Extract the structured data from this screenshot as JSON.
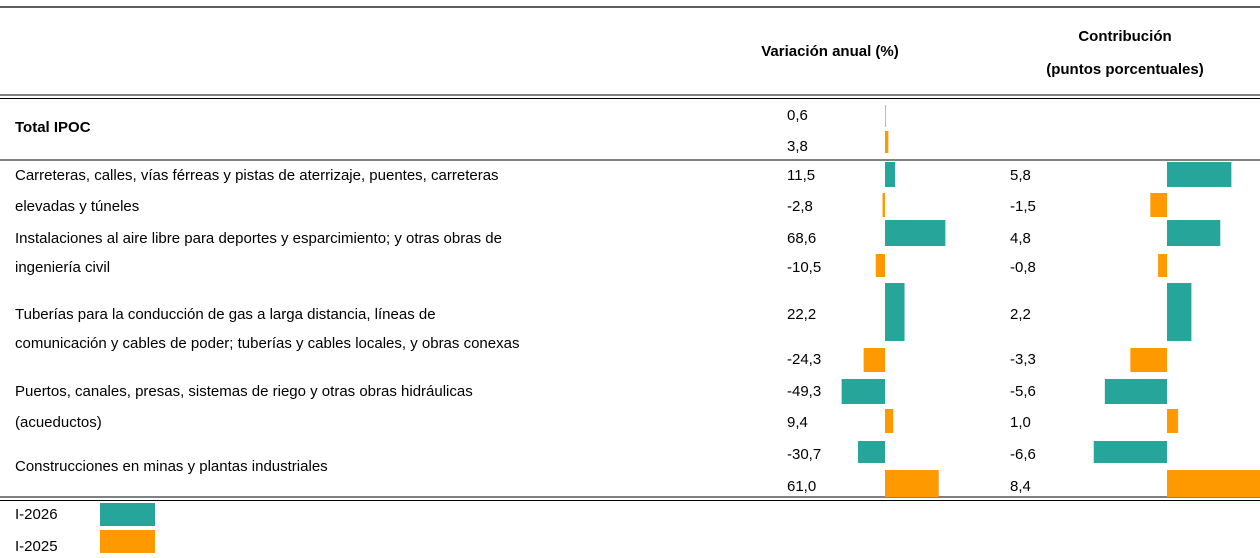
{
  "column_headers": [
    [
      "Variación anual (%)"
    ],
    [
      "Contribución",
      "(puntos porcentuales)"
    ]
  ],
  "series": [
    {
      "name": "I-2026",
      "color": "#26a69a"
    },
    {
      "name": "I-2025",
      "color": "#ff9900"
    }
  ],
  "rows": [
    {
      "label_lines": [
        "Total IPOC"
      ],
      "bold": true,
      "variation": {
        "values": [
          0.6,
          3.8
        ],
        "value_labels": [
          "0,6",
          "3,8"
        ]
      }
    },
    {
      "label_lines": [
        "Carreteras, calles, vías férreas y pistas de aterrizaje, puentes, carreteras",
        "elevadas y túneles"
      ],
      "variation": {
        "values": [
          11.5,
          -2.8
        ],
        "value_labels": [
          "11,5",
          "-2,8"
        ]
      },
      "contribution": {
        "values": [
          5.8,
          -1.5
        ],
        "value_labels": [
          "5,8",
          "-1,5"
        ]
      }
    },
    {
      "label_lines": [
        "Instalaciones al aire libre para deportes y esparcimiento; y otras obras de",
        "ingeniería civil"
      ],
      "variation": {
        "values": [
          68.6,
          -10.5
        ],
        "value_labels": [
          "68,6",
          "-10,5"
        ]
      },
      "contribution": {
        "values": [
          4.8,
          -0.8
        ],
        "value_labels": [
          "4,8",
          "-0,8"
        ]
      }
    },
    {
      "label_lines": [
        "Tuberías para la conducción de gas a larga distancia, líneas de",
        "comunicación y cables de poder; tuberías y cables locales, y obras conexas"
      ],
      "variation": {
        "values": [
          22.2,
          -24.3
        ],
        "value_labels": [
          "22,2",
          "-24,3"
        ]
      },
      "contribution": {
        "values": [
          2.2,
          -3.3
        ],
        "value_labels": [
          "2,2",
          "-3,3"
        ]
      }
    },
    {
      "label_lines": [
        "Puertos, canales, presas, sistemas de riego y otras obras hidráulicas",
        "(acueductos)"
      ],
      "variation": {
        "values": [
          -49.3,
          9.4
        ],
        "value_labels": [
          "-49,3",
          "9,4"
        ]
      },
      "contribution": {
        "values": [
          -5.6,
          1.0
        ],
        "value_labels": [
          "-5,6",
          "1,0"
        ]
      }
    },
    {
      "label_lines": [
        "Construcciones  en minas y plantas industriales"
      ],
      "variation": {
        "values": [
          -30.7,
          61.0
        ],
        "value_labels": [
          "-30,7",
          "61,0"
        ]
      },
      "contribution": {
        "values": [
          -6.6,
          8.4
        ],
        "value_labels": [
          "-6,6",
          "8,4"
        ]
      }
    }
  ]
}
